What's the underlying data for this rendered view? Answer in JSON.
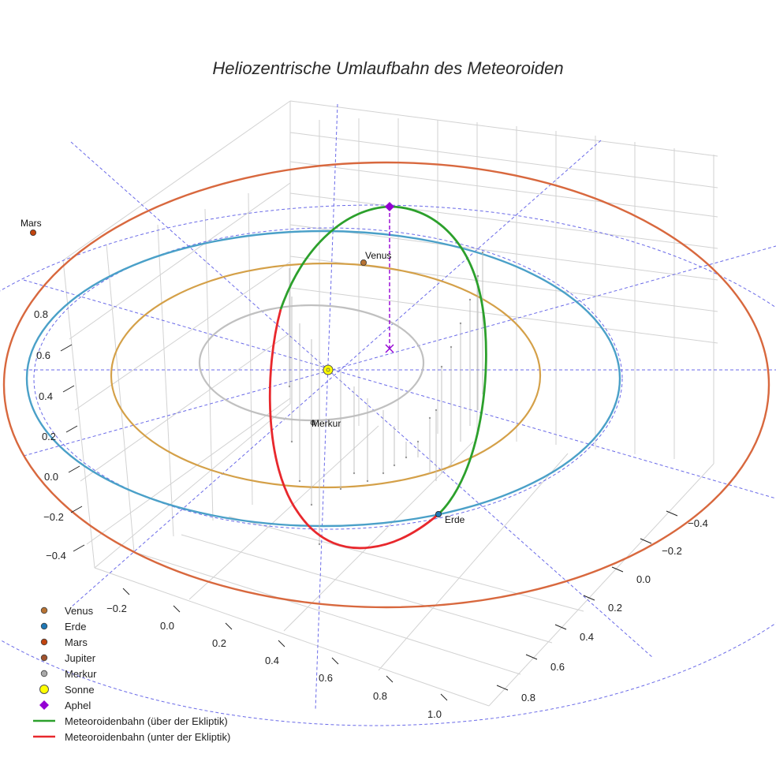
{
  "chart_data": {
    "type": "scatter3d",
    "title": "Heliozentrische Umlaufbahn des Meteoroiden",
    "axes": {
      "x_ticks": [
        "−0.2",
        "0.0",
        "0.2",
        "0.4",
        "0.6",
        "0.8",
        "1.0"
      ],
      "y_ticks": [
        "−0.4",
        "−0.2",
        "0.0",
        "0.2",
        "0.4",
        "0.6",
        "0.8"
      ],
      "z_ticks": [
        "0.8",
        "0.6",
        "0.4",
        "0.2",
        "0.0",
        "−0.2",
        "−0.4"
      ],
      "grid": true
    },
    "planet_labels": {
      "venus": "Venus",
      "erde": "Erde",
      "mars": "Mars",
      "merkur": "Merkur"
    },
    "legend": {
      "placement": "bottom-left",
      "entries": [
        {
          "label": "Venus",
          "color": "#b87333",
          "marker": "circle"
        },
        {
          "label": "Erde",
          "color": "#1f77b4",
          "marker": "circle"
        },
        {
          "label": "Mars",
          "color": "#c1440e",
          "marker": "circle"
        },
        {
          "label": "Jupiter",
          "color": "#a0522d",
          "marker": "circle"
        },
        {
          "label": "Merkur",
          "color": "#a9a9a9",
          "marker": "circle"
        },
        {
          "label": "Sonne",
          "color": "#ffff00",
          "marker": "circle-large"
        },
        {
          "label": "Aphel",
          "color": "#9400d3",
          "marker": "diamond"
        },
        {
          "label": "Meteoroidenbahn (über der Ekliptik)",
          "color": "#2ca02c",
          "marker": "line"
        },
        {
          "label": "Meteoroidenbahn (unter der Ekliptik)",
          "color": "#e8282d",
          "marker": "line"
        }
      ]
    },
    "colors": {
      "mercury_orbit": "#c0c0c0",
      "venus_orbit": "#d4a048",
      "earth_orbit": "#4aa0c8",
      "mars_orbit": "#d8683e",
      "ecliptic_grid": "#6a6ae8",
      "aphel": "#9400d3"
    }
  }
}
